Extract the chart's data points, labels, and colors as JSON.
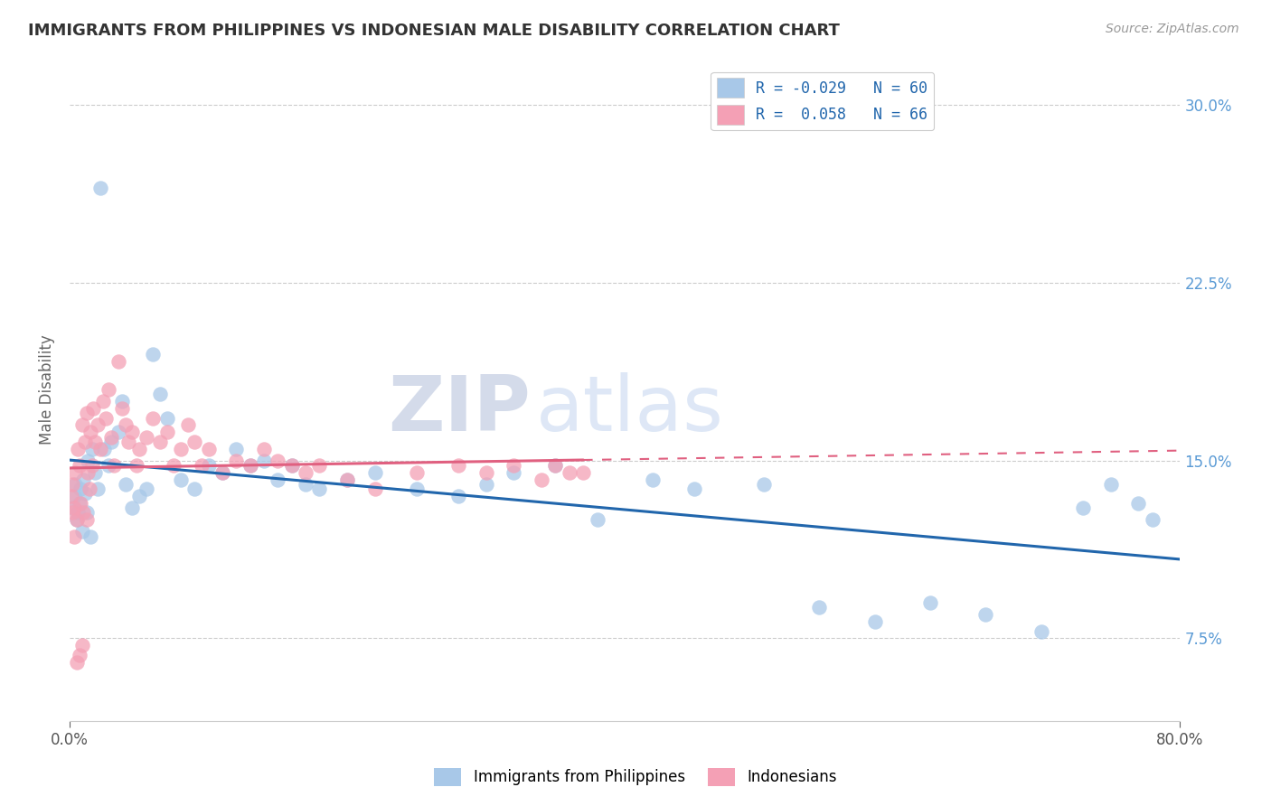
{
  "title": "IMMIGRANTS FROM PHILIPPINES VS INDONESIAN MALE DISABILITY CORRELATION CHART",
  "source": "Source: ZipAtlas.com",
  "ylabel": "Male Disability",
  "xmin": 0.0,
  "xmax": 0.8,
  "ymin": 0.04,
  "ymax": 0.32,
  "color_blue": "#a8c8e8",
  "color_pink": "#f4a0b5",
  "color_blue_line": "#2166ac",
  "color_pink_line": "#e06080",
  "watermark_zip": "ZIP",
  "watermark_atlas": "atlas",
  "legend_label1": "R = -0.029   N = 60",
  "legend_label2": "R =  0.058   N = 66",
  "ytick_positions": [
    0.075,
    0.15,
    0.225,
    0.3
  ],
  "ytick_labels": [
    "7.5%",
    "15.0%",
    "22.5%",
    "30.0%"
  ],
  "phil_x": [
    0.002,
    0.003,
    0.004,
    0.005,
    0.006,
    0.007,
    0.008,
    0.009,
    0.01,
    0.011,
    0.012,
    0.013,
    0.015,
    0.016,
    0.018,
    0.02,
    0.022,
    0.025,
    0.028,
    0.03,
    0.035,
    0.038,
    0.04,
    0.045,
    0.05,
    0.055,
    0.06,
    0.065,
    0.07,
    0.08,
    0.09,
    0.1,
    0.11,
    0.12,
    0.13,
    0.14,
    0.15,
    0.16,
    0.17,
    0.18,
    0.2,
    0.22,
    0.25,
    0.28,
    0.3,
    0.32,
    0.35,
    0.38,
    0.42,
    0.45,
    0.5,
    0.54,
    0.58,
    0.62,
    0.66,
    0.7,
    0.73,
    0.75,
    0.77,
    0.78
  ],
  "phil_y": [
    0.13,
    0.135,
    0.14,
    0.125,
    0.128,
    0.132,
    0.138,
    0.12,
    0.142,
    0.136,
    0.128,
    0.15,
    0.118,
    0.155,
    0.145,
    0.138,
    0.265,
    0.155,
    0.148,
    0.158,
    0.162,
    0.175,
    0.14,
    0.13,
    0.135,
    0.138,
    0.195,
    0.178,
    0.168,
    0.142,
    0.138,
    0.148,
    0.145,
    0.155,
    0.148,
    0.15,
    0.142,
    0.148,
    0.14,
    0.138,
    0.142,
    0.145,
    0.138,
    0.135,
    0.14,
    0.145,
    0.148,
    0.125,
    0.142,
    0.138,
    0.14,
    0.088,
    0.082,
    0.09,
    0.085,
    0.078,
    0.13,
    0.14,
    0.132,
    0.125
  ],
  "indo_x": [
    0.001,
    0.002,
    0.003,
    0.004,
    0.005,
    0.006,
    0.007,
    0.008,
    0.009,
    0.01,
    0.011,
    0.012,
    0.013,
    0.014,
    0.015,
    0.016,
    0.017,
    0.018,
    0.02,
    0.022,
    0.024,
    0.026,
    0.028,
    0.03,
    0.032,
    0.035,
    0.038,
    0.04,
    0.042,
    0.045,
    0.048,
    0.05,
    0.055,
    0.06,
    0.065,
    0.07,
    0.075,
    0.08,
    0.085,
    0.09,
    0.095,
    0.1,
    0.11,
    0.12,
    0.13,
    0.14,
    0.15,
    0.16,
    0.17,
    0.18,
    0.2,
    0.22,
    0.25,
    0.28,
    0.3,
    0.32,
    0.34,
    0.35,
    0.36,
    0.37,
    0.002,
    0.003,
    0.005,
    0.007,
    0.009,
    0.012
  ],
  "indo_y": [
    0.135,
    0.14,
    0.13,
    0.145,
    0.125,
    0.155,
    0.148,
    0.132,
    0.165,
    0.128,
    0.158,
    0.17,
    0.145,
    0.138,
    0.162,
    0.148,
    0.172,
    0.158,
    0.165,
    0.155,
    0.175,
    0.168,
    0.18,
    0.16,
    0.148,
    0.192,
    0.172,
    0.165,
    0.158,
    0.162,
    0.148,
    0.155,
    0.16,
    0.168,
    0.158,
    0.162,
    0.148,
    0.155,
    0.165,
    0.158,
    0.148,
    0.155,
    0.145,
    0.15,
    0.148,
    0.155,
    0.15,
    0.148,
    0.145,
    0.148,
    0.142,
    0.138,
    0.145,
    0.148,
    0.145,
    0.148,
    0.142,
    0.148,
    0.145,
    0.145,
    0.128,
    0.118,
    0.065,
    0.068,
    0.072,
    0.125
  ]
}
